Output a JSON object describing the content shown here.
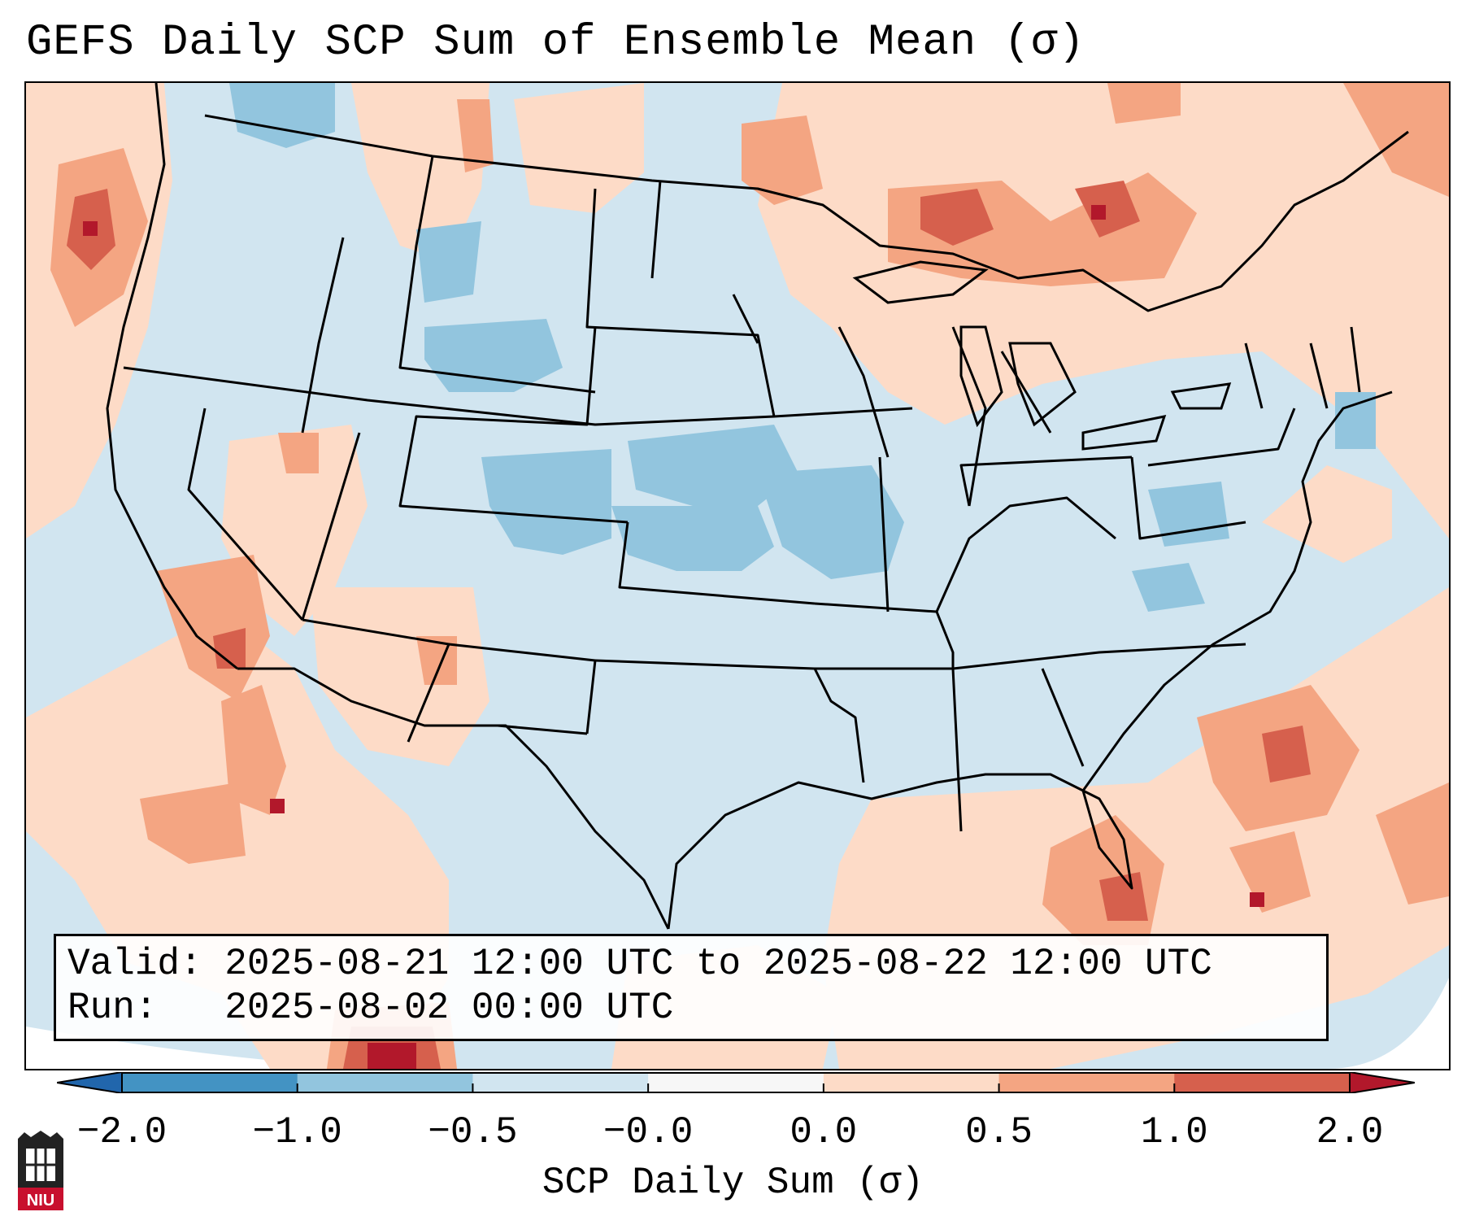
{
  "title": "GEFS Daily SCP Sum of Ensemble Mean (σ)",
  "info": {
    "valid_line": "Valid: 2025-08-21 12:00 UTC to 2025-08-22 12:00 UTC",
    "run_line": "Run:   2025-08-02 00:00 UTC"
  },
  "colorbar": {
    "label": "SCP Daily Sum (σ)",
    "ticks": [
      "−2.0",
      "−1.0",
      "−0.5",
      "−0.0",
      "0.0",
      "0.5",
      "1.0",
      "2.0"
    ],
    "colors": [
      "#4393c3",
      "#92c5de",
      "#d1e5f0",
      "#f7f7f7",
      "#fddbc7",
      "#f4a582",
      "#d6604d"
    ],
    "under_color": "#2166ac",
    "over_color": "#b2182b"
  },
  "logo": {
    "text": "NIU"
  },
  "map": {
    "background_color": "#d1e5f0",
    "feature_color": "#000000"
  }
}
